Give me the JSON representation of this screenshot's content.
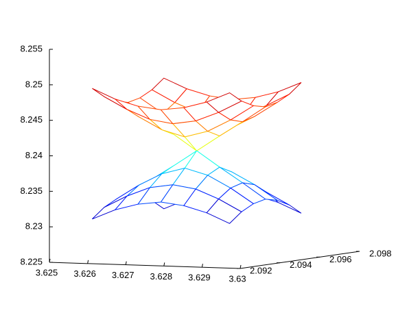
{
  "chart_data": {
    "type": "mesh3d",
    "colormap": "jet",
    "x": [
      3.6256,
      3.6262,
      3.6268,
      3.6274,
      3.628,
      3.6286,
      3.6292
    ],
    "y": [
      2.093,
      2.0936,
      2.0942,
      2.0948,
      2.0954,
      2.096,
      2.0966
    ],
    "z": [
      [
        [
          8.2492,
          8.2478,
          8.2469,
          8.2465,
          8.2469,
          8.2478,
          8.2492
        ],
        [
          8.2478,
          8.2461,
          8.2448,
          8.2443,
          8.2448,
          8.2461,
          8.2478
        ],
        [
          8.2469,
          8.2448,
          8.2431,
          8.2422,
          8.2431,
          8.2448,
          8.2469
        ],
        [
          8.2465,
          8.2443,
          8.2422,
          8.24,
          8.2422,
          8.2443,
          8.2465
        ],
        [
          8.2469,
          8.2448,
          8.2431,
          8.2422,
          8.2431,
          8.2448,
          8.2469
        ],
        [
          8.2478,
          8.2461,
          8.2448,
          8.2443,
          8.2448,
          8.2461,
          8.2478
        ],
        [
          8.2492,
          8.2478,
          8.2469,
          8.2465,
          8.2469,
          8.2478,
          8.2492
        ]
      ],
      [
        [
          8.2308,
          8.2322,
          8.2331,
          8.2335,
          8.2331,
          8.2322,
          8.2308
        ],
        [
          8.2322,
          8.2339,
          8.2352,
          8.2357,
          8.2352,
          8.2339,
          8.2322
        ],
        [
          8.2331,
          8.2352,
          8.2369,
          8.2378,
          8.2369,
          8.2352,
          8.2331
        ],
        [
          8.2335,
          8.2357,
          8.2378,
          8.24,
          8.2378,
          8.2357,
          8.2335
        ],
        [
          8.2331,
          8.2352,
          8.2369,
          8.2378,
          8.2369,
          8.2352,
          8.2331
        ],
        [
          8.2322,
          8.2339,
          8.2352,
          8.2357,
          8.2352,
          8.2339,
          8.2322
        ],
        [
          8.2308,
          8.2322,
          8.2331,
          8.2335,
          8.2331,
          8.2322,
          8.2308
        ]
      ]
    ],
    "xlim": [
      3.625,
      3.63
    ],
    "xticks": [
      3.625,
      3.626,
      3.627,
      3.628,
      3.629,
      3.63
    ],
    "ylim": [
      2.092,
      2.098
    ],
    "yticks": [
      2.092,
      2.094,
      2.096,
      2.098
    ],
    "zlim": [
      8.225,
      8.255
    ],
    "zticks": [
      8.225,
      8.23,
      8.235,
      8.24,
      8.245,
      8.25,
      8.255
    ]
  }
}
